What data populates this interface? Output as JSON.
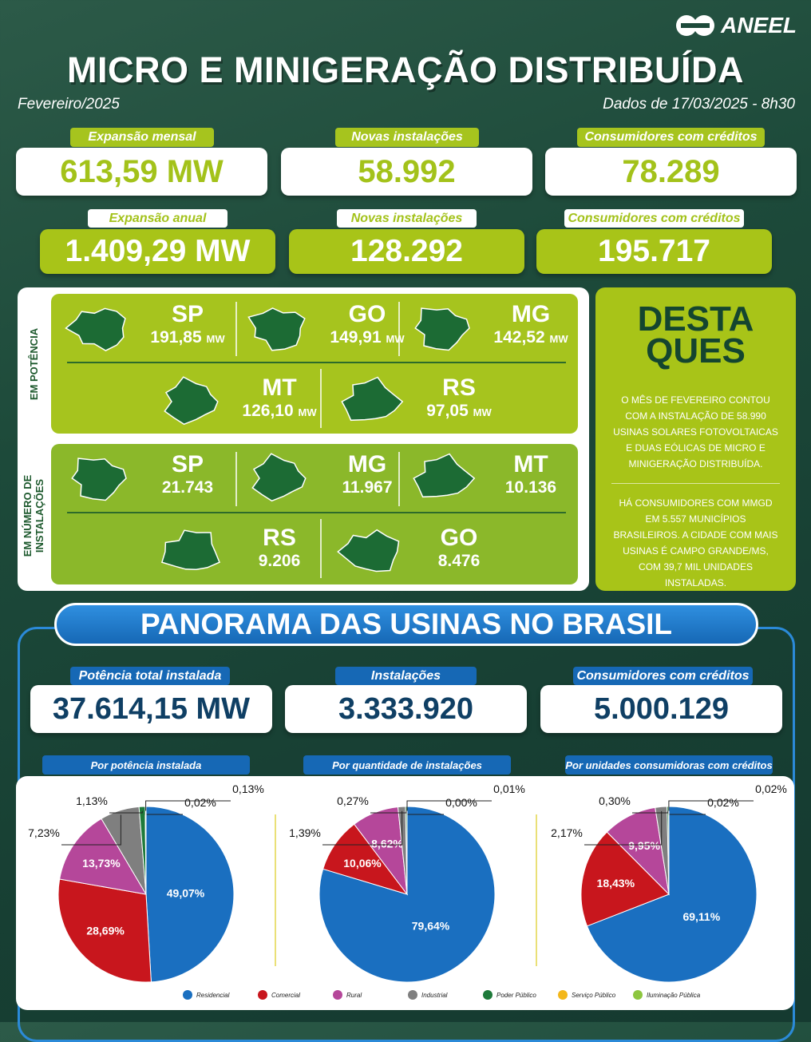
{
  "header": {
    "logo": "ANEEL",
    "title": "MICRO E MINIGERAÇÃO DISTRIBUÍDA",
    "period": "Fevereiro/2025",
    "date": "Dados de 17/03/2025 - 8h30"
  },
  "monthly": [
    {
      "label": "Expansão mensal",
      "value": "613,59 MW"
    },
    {
      "label": "Novas instalações",
      "value": "58.992"
    },
    {
      "label": "Consumidores com créditos",
      "value": "78.289"
    }
  ],
  "annual": [
    {
      "label": "Expansão anual",
      "value": "1.409,29 MW"
    },
    {
      "label": "Novas instalações",
      "value": "128.292"
    },
    {
      "label": "Consumidores com créditos",
      "value": "195.717"
    }
  ],
  "ranking": {
    "power": {
      "label": "EM POTÊNCIA",
      "items": [
        {
          "state": "SP",
          "value": "191,85",
          "unit": "MW"
        },
        {
          "state": "GO",
          "value": "149,91",
          "unit": "MW"
        },
        {
          "state": "MG",
          "value": "142,52",
          "unit": "MW"
        },
        {
          "state": "MT",
          "value": "126,10",
          "unit": "MW"
        },
        {
          "state": "RS",
          "value": "97,05",
          "unit": "MW"
        }
      ]
    },
    "installations": {
      "label": "EM NÚMERO DE INSTALAÇÕES",
      "items": [
        {
          "state": "SP",
          "value": "21.743"
        },
        {
          "state": "MG",
          "value": "11.967"
        },
        {
          "state": "MT",
          "value": "10.136"
        },
        {
          "state": "RS",
          "value": "9.206"
        },
        {
          "state": "GO",
          "value": "8.476"
        }
      ]
    }
  },
  "highlights": {
    "title": [
      "DESTA",
      "QUES"
    ],
    "paragraphs": [
      "O MÊS DE FEVEREIRO CONTOU COM A INSTALAÇÃO DE 58.990 USINAS SOLARES FOTOVOLTAICAS E DUAS EÓLICAS DE MICRO E MINIGERAÇÃO DISTRIBUÍDA.",
      "HÁ CONSUMIDORES COM MMGD EM 5.557 MUNICÍPIOS BRASILEIROS. A CIDADE COM MAIS USINAS É CAMPO GRANDE/MS, COM 39,7 MIL UNIDADES INSTALADAS."
    ]
  },
  "panorama": {
    "title": "PANORAMA DAS USINAS NO BRASIL",
    "cards": [
      {
        "label": "Potência total instalada",
        "value": "37.614,15 MW"
      },
      {
        "label": "Instalações",
        "value": "3.333.920"
      },
      {
        "label": "Consumidores com créditos",
        "value": "5.000.129"
      }
    ]
  },
  "chart_data": [
    {
      "type": "pie",
      "title": "Por potência instalada",
      "categories": [
        "Residencial",
        "Comercial",
        "Rural",
        "Industrial",
        "Poder Público",
        "Serviço Público",
        "Iluminação Pública"
      ],
      "colors": [
        "#1a6fc0",
        "#c8161d",
        "#b5479a",
        "#7f7f7f",
        "#1e7a3a",
        "#f3b71a",
        "#8dc63f"
      ],
      "values": [
        49.07,
        28.69,
        13.73,
        7.23,
        1.13,
        0.02,
        0.13
      ],
      "value_labels": [
        "49,07%",
        "28,69%",
        "13,73%",
        "7,23%",
        "1,13%",
        "0,02%",
        "0,13%"
      ]
    },
    {
      "type": "pie",
      "title": "Por quantidade de instalações",
      "categories": [
        "Residencial",
        "Comercial",
        "Rural",
        "Industrial",
        "Poder Público",
        "Serviço Público",
        "Iluminação Pública"
      ],
      "colors": [
        "#1a6fc0",
        "#c8161d",
        "#b5479a",
        "#7f7f7f",
        "#1e7a3a",
        "#f3b71a",
        "#8dc63f"
      ],
      "values": [
        79.64,
        10.06,
        8.62,
        1.39,
        0.27,
        0.0,
        0.01
      ],
      "value_labels": [
        "79,64%",
        "10,06%",
        "8,62%",
        "1,39%",
        "0,27%",
        "0,00%",
        "0,01%"
      ]
    },
    {
      "type": "pie",
      "title": "Por unidades consumidoras com créditos",
      "categories": [
        "Residencial",
        "Comercial",
        "Rural",
        "Industrial",
        "Poder Público",
        "Serviço Público",
        "Iluminação Pública"
      ],
      "colors": [
        "#1a6fc0",
        "#c8161d",
        "#b5479a",
        "#7f7f7f",
        "#1e7a3a",
        "#f3b71a",
        "#8dc63f"
      ],
      "values": [
        69.11,
        18.43,
        9.95,
        2.17,
        0.3,
        0.02,
        0.02
      ],
      "value_labels": [
        "69,11%",
        "18,43%",
        "9,95%",
        "2,17%",
        "0,30%",
        "0,02%",
        "0,02%"
      ]
    }
  ]
}
